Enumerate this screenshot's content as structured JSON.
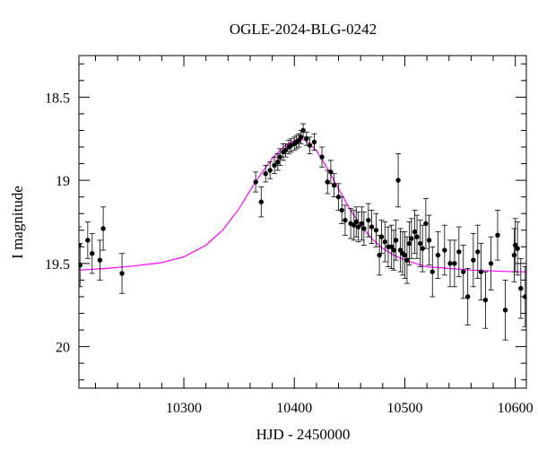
{
  "chart_data": {
    "type": "scatter",
    "title": "OGLE-2024-BLG-0242",
    "xlabel": "HJD - 2450000",
    "ylabel": "I magnitude",
    "xlim": [
      10205,
      10610
    ],
    "ylim": [
      20.25,
      18.25
    ],
    "y_inverted": true,
    "xticks": [
      10300,
      10400,
      10500,
      10600
    ],
    "xtick_labels": [
      "10300",
      "10400",
      "10500",
      "10600"
    ],
    "yticks": [
      18.5,
      19,
      19.5,
      20
    ],
    "ytick_labels": [
      "18.5",
      "19",
      "19.5",
      "20"
    ],
    "grid": false,
    "colors": {
      "points": "#000000",
      "errorbars": "#000000",
      "model": "#ff00ff",
      "frame": "#000000"
    },
    "model": {
      "name": "model",
      "x": [
        10205,
        10230,
        10255,
        10280,
        10300,
        10320,
        10335,
        10350,
        10360,
        10370,
        10380,
        10390,
        10400,
        10405,
        10410,
        10420,
        10430,
        10440,
        10450,
        10460,
        10470,
        10480,
        10490,
        10500,
        10510,
        10520,
        10540,
        10560,
        10580,
        10600,
        10610
      ],
      "y": [
        19.54,
        19.53,
        19.515,
        19.495,
        19.46,
        19.39,
        19.3,
        19.17,
        19.06,
        18.96,
        18.87,
        18.8,
        18.76,
        18.75,
        18.76,
        18.82,
        18.93,
        19.05,
        19.17,
        19.27,
        19.35,
        19.41,
        19.45,
        19.48,
        19.5,
        19.52,
        19.53,
        19.54,
        19.545,
        19.55,
        19.55
      ]
    },
    "series": [
      {
        "x": [
          10205,
          10206,
          10213,
          10217,
          10224,
          10227,
          10244,
          10365,
          10370,
          10374,
          10378,
          10382,
          10385,
          10387,
          10390,
          10392,
          10395,
          10397,
          10400,
          10402,
          10404,
          10406,
          10408,
          10411,
          10414,
          10418,
          10425,
          10430,
          10433,
          10436,
          10440,
          10443,
          10446,
          10451,
          10454,
          10456,
          10458,
          10461,
          10463,
          10467,
          10470,
          10474,
          10477,
          10479,
          10482,
          10485,
          10488,
          10490,
          10492,
          10494,
          10496,
          10498,
          10500,
          10502,
          10504,
          10506,
          10509,
          10511,
          10514,
          10516,
          10519,
          10522,
          10525,
          10530,
          10536,
          10541,
          10545,
          10549,
          10553,
          10557,
          10562,
          10566,
          10569,
          10573,
          10578,
          10584,
          10591,
          10599,
          10600,
          10602,
          10605,
          10609
        ],
        "y": [
          19.39,
          19.51,
          19.36,
          19.44,
          19.48,
          19.29,
          19.56,
          19.01,
          19.13,
          18.96,
          18.94,
          18.91,
          18.89,
          18.86,
          18.83,
          18.82,
          18.8,
          18.79,
          18.78,
          18.77,
          18.76,
          18.74,
          18.7,
          18.75,
          18.79,
          18.77,
          18.86,
          19.01,
          18.95,
          19.03,
          19.1,
          19.18,
          19.24,
          19.26,
          19.27,
          19.25,
          19.28,
          19.26,
          19.29,
          19.24,
          19.28,
          19.3,
          19.45,
          19.34,
          19.37,
          19.4,
          19.4,
          19.42,
          19.36,
          19.0,
          19.42,
          19.44,
          19.45,
          19.48,
          19.38,
          19.35,
          19.31,
          19.34,
          19.38,
          19.41,
          19.26,
          19.36,
          19.55,
          19.45,
          19.42,
          19.5,
          19.5,
          19.43,
          19.55,
          19.7,
          19.48,
          19.43,
          19.55,
          19.72,
          19.5,
          19.33,
          19.78,
          19.45,
          19.39,
          19.41,
          19.65,
          19.7
        ],
        "err": [
          0.11,
          0.13,
          0.11,
          0.12,
          0.12,
          0.13,
          0.12,
          0.06,
          0.09,
          0.05,
          0.05,
          0.05,
          0.05,
          0.05,
          0.05,
          0.04,
          0.04,
          0.04,
          0.04,
          0.04,
          0.04,
          0.04,
          0.04,
          0.04,
          0.05,
          0.05,
          0.06,
          0.07,
          0.07,
          0.07,
          0.08,
          0.08,
          0.09,
          0.09,
          0.09,
          0.09,
          0.09,
          0.1,
          0.1,
          0.1,
          0.1,
          0.1,
          0.12,
          0.1,
          0.12,
          0.12,
          0.13,
          0.12,
          0.12,
          0.16,
          0.13,
          0.13,
          0.14,
          0.14,
          0.13,
          0.12,
          0.13,
          0.13,
          0.14,
          0.14,
          0.15,
          0.15,
          0.15,
          0.14,
          0.15,
          0.14,
          0.14,
          0.15,
          0.16,
          0.17,
          0.16,
          0.16,
          0.17,
          0.17,
          0.16,
          0.15,
          0.18,
          0.16,
          0.16,
          0.16,
          0.18,
          0.18
        ]
      }
    ]
  }
}
